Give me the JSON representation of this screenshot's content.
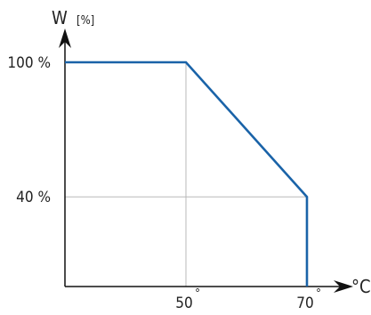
{
  "chart_data": {
    "type": "line",
    "title": "",
    "ylabel": "W",
    "ylabel_unit": "[%]",
    "xlabel": "°C",
    "x_ticks": [
      {
        "value": 50,
        "label": "50",
        "degree": "°"
      },
      {
        "value": 70,
        "label": "70",
        "degree": "°"
      }
    ],
    "y_ticks": [
      {
        "value": 40,
        "label": "40 %"
      },
      {
        "value": 100,
        "label": "100 %"
      }
    ],
    "xlim": [
      30,
      70
    ],
    "ylim": [
      0,
      100
    ],
    "grid": "light lines at x=50 and y=40",
    "series": [
      {
        "color": "#1a63a8",
        "x": [
          30,
          50,
          70,
          70
        ],
        "y": [
          100,
          100,
          40,
          0
        ]
      }
    ]
  }
}
